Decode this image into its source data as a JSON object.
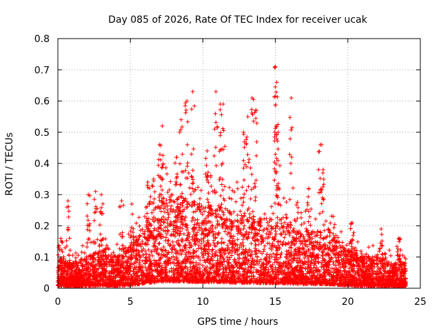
{
  "chart_data": {
    "type": "scatter",
    "title": "Day 085 of 2026, Rate Of TEC Index for receiver ucak",
    "xlabel": "GPS time / hours",
    "ylabel": "ROTI / TECUs",
    "xlim": [
      0,
      25
    ],
    "ylim": [
      0,
      0.8
    ],
    "xticks": [
      "0",
      "5",
      "10",
      "15",
      "20",
      "25"
    ],
    "yticks": [
      "0",
      "0.1",
      "0.2",
      "0.3",
      "0.4",
      "0.5",
      "0.6",
      "0.7",
      "0.8"
    ],
    "grid": true,
    "marker": "+",
    "color": "#ff0000",
    "data_range_hours": [
      0,
      24
    ],
    "profile": [
      [
        0,
        0.05
      ],
      [
        1,
        0.04
      ],
      [
        2,
        0.05
      ],
      [
        3,
        0.06
      ],
      [
        4,
        0.05
      ],
      [
        5,
        0.07
      ],
      [
        6,
        0.1
      ],
      [
        7,
        0.14
      ],
      [
        8,
        0.15
      ],
      [
        9,
        0.14
      ],
      [
        10,
        0.13
      ],
      [
        11,
        0.13
      ],
      [
        12,
        0.12
      ],
      [
        13,
        0.12
      ],
      [
        14,
        0.11
      ],
      [
        15,
        0.11
      ],
      [
        16,
        0.1
      ],
      [
        17,
        0.09
      ],
      [
        18,
        0.09
      ],
      [
        19,
        0.08
      ],
      [
        20,
        0.06
      ],
      [
        21,
        0.05
      ],
      [
        22,
        0.05
      ],
      [
        23,
        0.04
      ],
      [
        24,
        0.04
      ]
    ],
    "peaks": [
      [
        0.2,
        0.16
      ],
      [
        0.7,
        0.28
      ],
      [
        2.1,
        0.3
      ],
      [
        2.6,
        0.31
      ],
      [
        3.0,
        0.3
      ],
      [
        4.4,
        0.28
      ],
      [
        5.1,
        0.27
      ],
      [
        6.2,
        0.34
      ],
      [
        6.6,
        0.35
      ],
      [
        7.0,
        0.46
      ],
      [
        7.2,
        0.52
      ],
      [
        8.2,
        0.42
      ],
      [
        8.5,
        0.54
      ],
      [
        8.9,
        0.6
      ],
      [
        9.3,
        0.63
      ],
      [
        10.3,
        0.44
      ],
      [
        10.9,
        0.63
      ],
      [
        11.2,
        0.59
      ],
      [
        11.4,
        0.59
      ],
      [
        12.8,
        0.5
      ],
      [
        13.1,
        0.55
      ],
      [
        13.4,
        0.61
      ],
      [
        13.7,
        0.57
      ],
      [
        15.0,
        0.71
      ],
      [
        15.1,
        0.66
      ],
      [
        15.05,
        0.52
      ],
      [
        15.2,
        0.5
      ],
      [
        16.1,
        0.61
      ],
      [
        17.3,
        0.32
      ],
      [
        18.1,
        0.46
      ],
      [
        18.3,
        0.38
      ],
      [
        19.0,
        0.23
      ],
      [
        20.3,
        0.21
      ],
      [
        22.3,
        0.19
      ],
      [
        23.5,
        0.16
      ]
    ]
  }
}
